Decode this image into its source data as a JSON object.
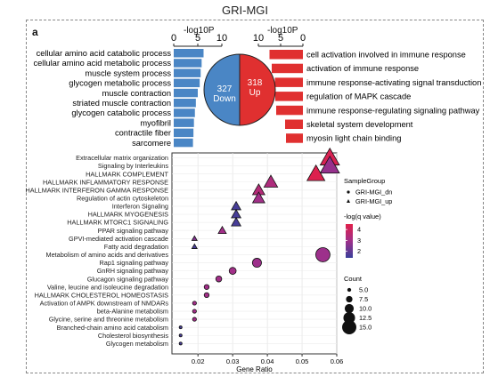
{
  "figure": {
    "title": "GRI-MGI",
    "panel_label": "a"
  },
  "top": {
    "left_axis_label": "-log10P",
    "left_ticks": [
      "0",
      "5",
      "10"
    ],
    "right_axis_label": "-log10P",
    "right_ticks": [
      "10",
      "5",
      "0"
    ],
    "left_terms": [
      {
        "label": "cellular amino acid catabolic process",
        "value": 6.2
      },
      {
        "label": "cellular amino acid metabolic process",
        "value": 5.8
      },
      {
        "label": "muscle system process",
        "value": 5.6
      },
      {
        "label": "glycogen metabolic process",
        "value": 5.4
      },
      {
        "label": "muscle contraction",
        "value": 5.0
      },
      {
        "label": "striated muscle contraction",
        "value": 4.6
      },
      {
        "label": "glycogen catabolic process",
        "value": 4.4
      },
      {
        "label": "myofibril",
        "value": 4.2
      },
      {
        "label": "contractile fiber",
        "value": 4.1
      },
      {
        "label": "sarcomere",
        "value": 4.0
      }
    ],
    "right_terms": [
      {
        "label": "cell activation involved in immune response",
        "value": 7.5
      },
      {
        "label": "activation of immune response",
        "value": 7.0
      },
      {
        "label": "immune response-activating signal transduction",
        "value": 6.3
      },
      {
        "label": "regulation of MAPK cascade",
        "value": 6.2
      },
      {
        "label": "immune response-regulating signaling pathway",
        "value": 6.0
      },
      {
        "label": "skeletal system development",
        "value": 4.0
      },
      {
        "label": "myosin light chain binding",
        "value": 3.8
      }
    ],
    "pie": {
      "down_count": "327",
      "down_label": "Down",
      "up_count": "318",
      "up_label": "Up",
      "down_color": "#4a86c5",
      "up_color": "#e03030"
    },
    "left_bar_color": "#4a86c5",
    "right_bar_color": "#e03030"
  },
  "chart_data": {
    "type": "scatter",
    "xlabel": "Gene Ratio",
    "xlim": [
      0.0125,
      0.06
    ],
    "xticks": [
      "0.02",
      "0.03",
      "0.04",
      "0.05",
      "0.06"
    ],
    "categories": [
      "Extracellular matrix organization",
      "Signaling by Interleukins",
      "HALLMARK COMPLEMENT",
      "HALLMARK INFLAMMATORY RESPONSE",
      "HALLMARK INTERFERON GAMMA RESPONSE",
      "Regulation of actin cytoskeleton",
      "Interferon Signaling",
      "HALLMARK MYOGENESIS",
      "HALLMARK MTORC1 SIGNALING",
      "PPAR signaling pathway",
      "GPVI-mediated activation cascade",
      "Fatty acid degradation",
      "Metabolism of amino acids and derivatives",
      "Rap1 signaling pathway",
      "GnRH signaling pathway",
      "Glucagon signaling pathway",
      "Valine, leucine and isoleucine degradation",
      "HALLMARK CHOLESTEROL HOMEOSTASIS",
      "Activation of AMPK downstream of NMDARs",
      "beta-Alanine metabolism",
      "Glycine, serine and threonine metabolism",
      "Branched-chain amino acid catabolism",
      "Cholesterol biosynthesis",
      "Glycogen metabolism"
    ],
    "points": [
      {
        "term": "Extracellular matrix organization",
        "gene_ratio": 0.058,
        "group": "GRI-MGI_up",
        "count": 15,
        "neglog_q": 4.3
      },
      {
        "term": "Signaling by Interleukins",
        "gene_ratio": 0.058,
        "group": "GRI-MGI_up",
        "count": 15,
        "neglog_q": 2.8
      },
      {
        "term": "HALLMARK COMPLEMENT",
        "gene_ratio": 0.054,
        "group": "GRI-MGI_up",
        "count": 14,
        "neglog_q": 4.4
      },
      {
        "term": "HALLMARK INFLAMMATORY RESPONSE",
        "gene_ratio": 0.041,
        "group": "GRI-MGI_up",
        "count": 11,
        "neglog_q": 3.3
      },
      {
        "term": "HALLMARK INTERFERON GAMMA RESPONSE",
        "gene_ratio": 0.0375,
        "group": "GRI-MGI_up",
        "count": 10,
        "neglog_q": 3.4
      },
      {
        "term": "Regulation of actin cytoskeleton",
        "gene_ratio": 0.0375,
        "group": "GRI-MGI_up",
        "count": 10,
        "neglog_q": 3.0
      },
      {
        "term": "Interferon Signaling",
        "gene_ratio": 0.031,
        "group": "GRI-MGI_up",
        "count": 8,
        "neglog_q": 1.6
      },
      {
        "term": "HALLMARK MYOGENESIS",
        "gene_ratio": 0.031,
        "group": "GRI-MGI_up",
        "count": 8,
        "neglog_q": 1.6
      },
      {
        "term": "HALLMARK MTORC1 SIGNALING",
        "gene_ratio": 0.031,
        "group": "GRI-MGI_up",
        "count": 8,
        "neglog_q": 1.6
      },
      {
        "term": "PPAR signaling pathway",
        "gene_ratio": 0.027,
        "group": "GRI-MGI_up",
        "count": 7,
        "neglog_q": 3.0
      },
      {
        "term": "GPVI-mediated activation cascade",
        "gene_ratio": 0.019,
        "group": "GRI-MGI_up",
        "count": 5,
        "neglog_q": 2.5
      },
      {
        "term": "Fatty acid degradation",
        "gene_ratio": 0.019,
        "group": "GRI-MGI_up",
        "count": 5,
        "neglog_q": 1.6
      },
      {
        "term": "Metabolism of amino acids and derivatives",
        "gene_ratio": 0.056,
        "group": "GRI-MGI_dn",
        "count": 15,
        "neglog_q": 2.9
      },
      {
        "term": "Rap1 signaling pathway",
        "gene_ratio": 0.037,
        "group": "GRI-MGI_dn",
        "count": 10,
        "neglog_q": 2.9
      },
      {
        "term": "GnRH signaling pathway",
        "gene_ratio": 0.03,
        "group": "GRI-MGI_dn",
        "count": 8,
        "neglog_q": 3.0
      },
      {
        "term": "Glucagon signaling pathway",
        "gene_ratio": 0.026,
        "group": "GRI-MGI_dn",
        "count": 7,
        "neglog_q": 3.0
      },
      {
        "term": "Valine, leucine and isoleucine degradation",
        "gene_ratio": 0.0225,
        "group": "GRI-MGI_dn",
        "count": 6,
        "neglog_q": 3.0
      },
      {
        "term": "HALLMARK CHOLESTEROL HOMEOSTASIS",
        "gene_ratio": 0.0225,
        "group": "GRI-MGI_dn",
        "count": 6,
        "neglog_q": 3.0
      },
      {
        "term": "Activation of AMPK downstream of NMDARs",
        "gene_ratio": 0.019,
        "group": "GRI-MGI_dn",
        "count": 5,
        "neglog_q": 3.0
      },
      {
        "term": "beta-Alanine metabolism",
        "gene_ratio": 0.019,
        "group": "GRI-MGI_dn",
        "count": 5,
        "neglog_q": 3.0
      },
      {
        "term": "Glycine, serine and threonine metabolism",
        "gene_ratio": 0.019,
        "group": "GRI-MGI_dn",
        "count": 5,
        "neglog_q": 3.0
      },
      {
        "term": "Branched-chain amino acid catabolism",
        "gene_ratio": 0.015,
        "group": "GRI-MGI_dn",
        "count": 4,
        "neglog_q": 1.6
      },
      {
        "term": "Cholesterol biosynthesis",
        "gene_ratio": 0.015,
        "group": "GRI-MGI_dn",
        "count": 4,
        "neglog_q": 1.6
      },
      {
        "term": "Glycogen metabolism",
        "gene_ratio": 0.015,
        "group": "GRI-MGI_dn",
        "count": 4,
        "neglog_q": 1.6
      }
    ],
    "legend": {
      "shape_title": "SampleGroup",
      "groups": [
        "GRI-MGI_dn",
        "GRI-MGI_up"
      ],
      "color_title": "-log(q value)",
      "color_ticks": [
        "4",
        "3",
        "2"
      ],
      "color_range": [
        1.4,
        4.5
      ],
      "color_low": "#3a3f9a",
      "color_mid": "#a0308a",
      "color_high": "#e0204a",
      "size_title": "Count",
      "size_ticks": [
        "5.0",
        "7.5",
        "10.0",
        "12.5",
        "15.0"
      ]
    }
  }
}
